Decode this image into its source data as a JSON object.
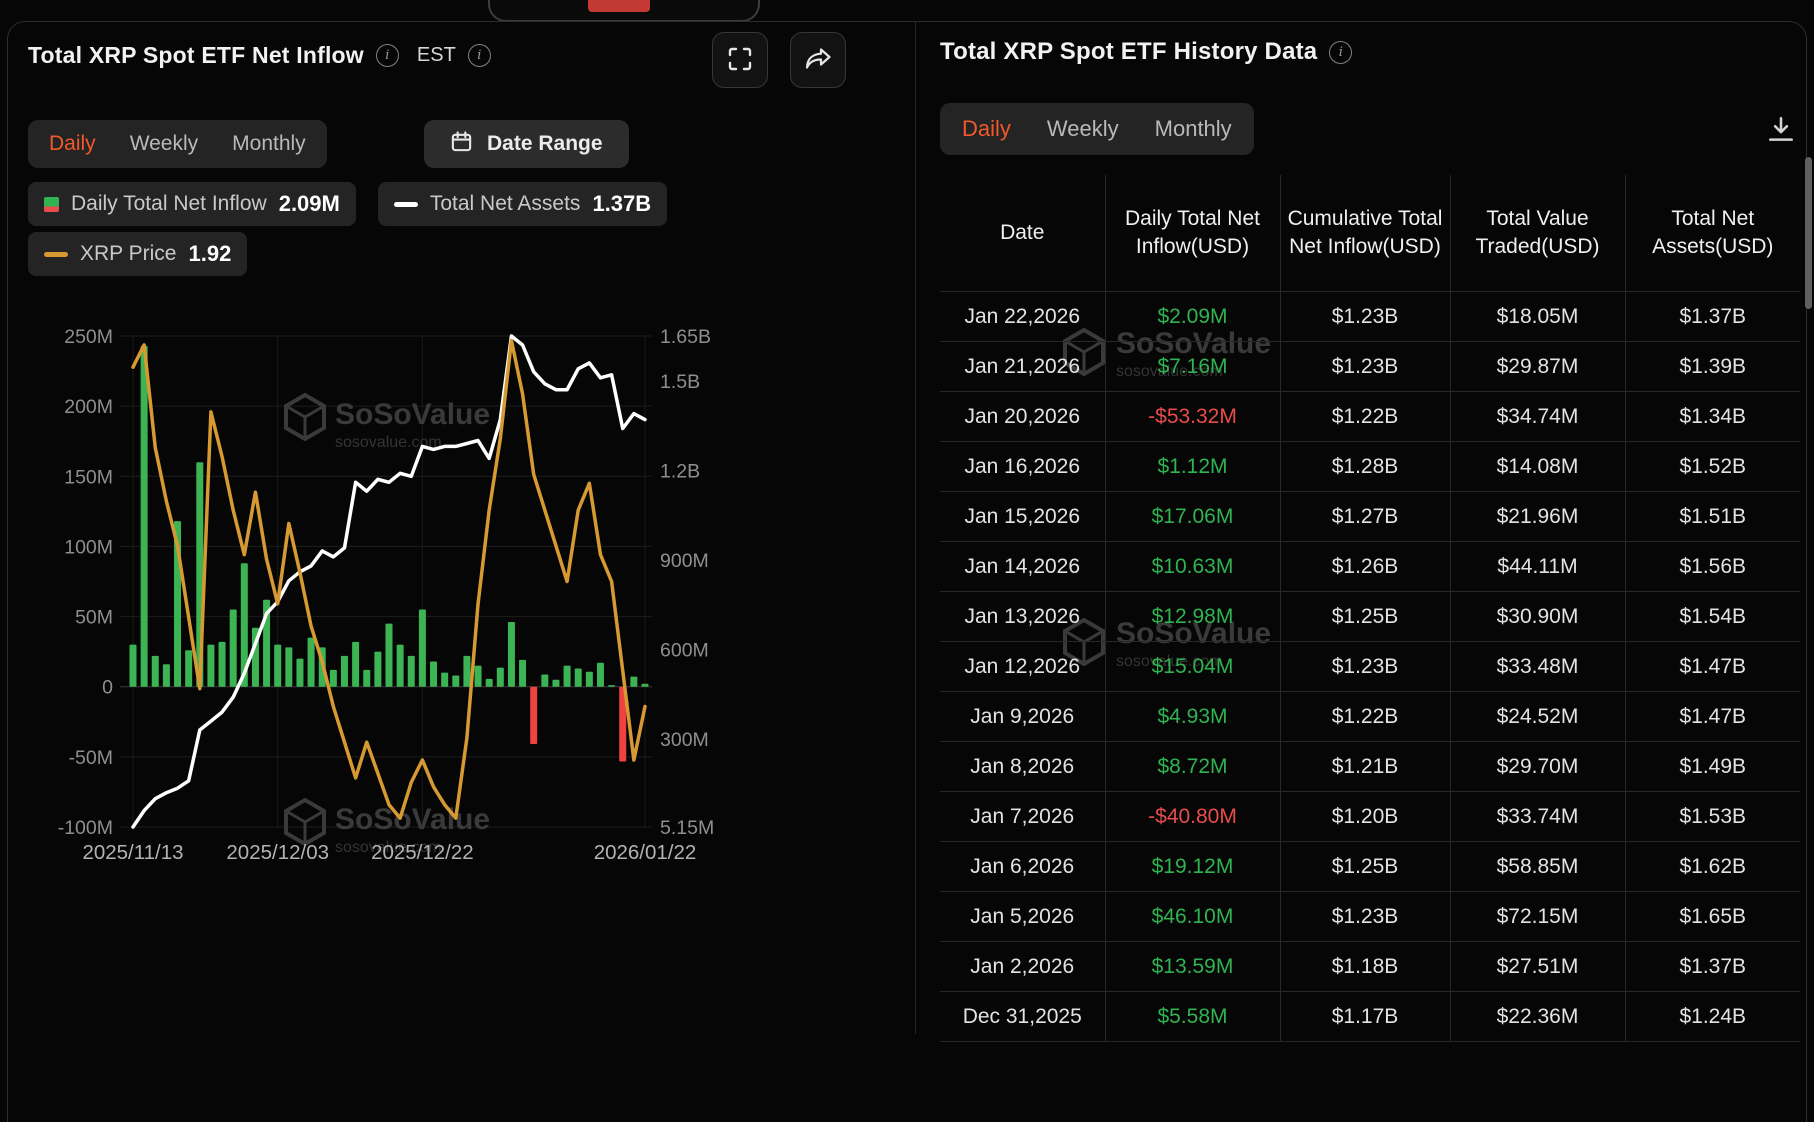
{
  "colors": {
    "accent_orange": "#f1582c",
    "green": "#30b350",
    "red": "#e94c4c",
    "price_line": "#d79a32",
    "assets_line": "#ffffff",
    "watermark": "#3a3a3a"
  },
  "watermark": {
    "name": "SoSoValue",
    "domain": "sosovalue.com"
  },
  "left_panel": {
    "title": "Total XRP Spot ETF Net Inflow",
    "est_label": "EST",
    "tabs": [
      {
        "label": "Daily",
        "active": true
      },
      {
        "label": "Weekly",
        "active": false
      },
      {
        "label": "Monthly",
        "active": false
      }
    ],
    "date_range_label": "Date Range",
    "legend": [
      {
        "label": "Daily Total Net Inflow",
        "value": "2.09M"
      },
      {
        "label": "Total Net Assets",
        "value": "1.37B"
      },
      {
        "label": "XRP Price",
        "value": "1.92"
      }
    ]
  },
  "chart_data": {
    "type": "bar",
    "note": "Mixed bar+line chart. Values for dates not present in the history table are estimated from pixel positions.",
    "x": [
      "11/13",
      "11/14",
      "11/17",
      "11/18",
      "11/19",
      "11/20",
      "11/21",
      "11/24",
      "11/25",
      "11/26",
      "11/28",
      "12/01",
      "12/02",
      "12/03",
      "12/04",
      "12/05",
      "12/08",
      "12/09",
      "12/10",
      "12/11",
      "12/12",
      "12/15",
      "12/16",
      "12/17",
      "12/18",
      "12/19",
      "12/22",
      "12/23",
      "12/24",
      "12/26",
      "12/29",
      "12/30",
      "12/31",
      "01/02",
      "01/05",
      "01/06",
      "01/07",
      "01/08",
      "01/09",
      "01/12",
      "01/13",
      "01/14",
      "01/15",
      "01/16",
      "01/20",
      "01/21",
      "01/22"
    ],
    "series": [
      {
        "name": "Daily Total Net Inflow (USD M)",
        "type": "bar",
        "axis": "left",
        "values": [
          30,
          243,
          22,
          16,
          118,
          26,
          160,
          30,
          32,
          55,
          88,
          42,
          62,
          30,
          28,
          20,
          35,
          28,
          12,
          22,
          32,
          12,
          25,
          45,
          30,
          22,
          55,
          18,
          10,
          8,
          22,
          15,
          5.58,
          13.59,
          46.1,
          19.12,
          -40.8,
          8.72,
          4.93,
          15.04,
          12.98,
          10.63,
          17.06,
          1.12,
          -53.32,
          7.16,
          2.09
        ]
      },
      {
        "name": "Total Net Assets (USD B)",
        "type": "line",
        "axis": "right",
        "color": "#ffffff",
        "values": [
          0.005,
          0.06,
          0.1,
          0.12,
          0.135,
          0.16,
          0.33,
          0.36,
          0.39,
          0.44,
          0.52,
          0.62,
          0.72,
          0.76,
          0.83,
          0.86,
          0.88,
          0.93,
          0.91,
          0.94,
          1.16,
          1.13,
          1.17,
          1.16,
          1.19,
          1.18,
          1.28,
          1.27,
          1.28,
          1.28,
          1.29,
          1.3,
          1.24,
          1.37,
          1.65,
          1.62,
          1.53,
          1.49,
          1.47,
          1.47,
          1.54,
          1.56,
          1.51,
          1.52,
          1.34,
          1.39,
          1.37
        ]
      },
      {
        "name": "XRP Price (USD)",
        "type": "line",
        "axis": "price",
        "color": "#d79a32",
        "values": [
          2.68,
          2.73,
          2.5,
          2.38,
          2.28,
          2.12,
          1.96,
          2.58,
          2.48,
          2.36,
          2.26,
          2.4,
          2.25,
          2.15,
          2.33,
          2.22,
          2.1,
          2.02,
          1.92,
          1.84,
          1.76,
          1.84,
          1.77,
          1.7,
          1.67,
          1.75,
          1.8,
          1.74,
          1.7,
          1.67,
          1.85,
          2.15,
          2.36,
          2.52,
          2.74,
          2.62,
          2.44,
          2.36,
          2.28,
          2.2,
          2.36,
          2.42,
          2.26,
          2.2,
          2.0,
          1.8,
          1.92
        ]
      }
    ],
    "left_axis": {
      "min": -100,
      "max": 250,
      "ticks": [
        {
          "label": "250M",
          "value": 250
        },
        {
          "label": "200M",
          "value": 200
        },
        {
          "label": "150M",
          "value": 150
        },
        {
          "label": "100M",
          "value": 100
        },
        {
          "label": "50M",
          "value": 50
        },
        {
          "label": "0",
          "value": 0
        },
        {
          "label": "-50M",
          "value": -50
        },
        {
          "label": "-100M",
          "value": -100
        }
      ]
    },
    "right_axis": {
      "min": 0.00515,
      "max": 1.65,
      "ticks": [
        {
          "label": "1.65B",
          "value": 1.65
        },
        {
          "label": "1.5B",
          "value": 1.5
        },
        {
          "label": "1.2B",
          "value": 1.2
        },
        {
          "label": "900M",
          "value": 0.9
        },
        {
          "label": "600M",
          "value": 0.6
        },
        {
          "label": "300M",
          "value": 0.3
        },
        {
          "label": "5.15M",
          "value": 0.00515
        }
      ]
    },
    "price_axis_hidden": {
      "min": 1.65,
      "max": 2.75
    },
    "x_tick_labels": [
      {
        "label": "2025/11/13",
        "index": 0
      },
      {
        "label": "2025/12/03",
        "index": 13
      },
      {
        "label": "2025/12/22",
        "index": 26
      },
      {
        "label": "2026/01/22",
        "index": 46
      }
    ],
    "bar_colors": {
      "positive": "#3cb454",
      "negative": "#f0433f"
    },
    "grid": true,
    "legend_position": "top"
  },
  "right_panel": {
    "title": "Total XRP Spot ETF History Data",
    "tabs": [
      {
        "label": "Daily",
        "active": true
      },
      {
        "label": "Weekly",
        "active": false
      },
      {
        "label": "Monthly",
        "active": false
      }
    ],
    "columns": [
      "Date",
      "Daily Total Net Inflow(USD)",
      "Cumulative Total Net Inflow(USD)",
      "Total Value Traded(USD)",
      "Total Net Assets(USD)"
    ],
    "rows": [
      {
        "date": "Jan 22,2026",
        "inflow": "$2.09M",
        "inflow_sign": "pos",
        "cumulative": "$1.23B",
        "traded": "$18.05M",
        "assets": "$1.37B"
      },
      {
        "date": "Jan 21,2026",
        "inflow": "$7.16M",
        "inflow_sign": "pos",
        "cumulative": "$1.23B",
        "traded": "$29.87M",
        "assets": "$1.39B"
      },
      {
        "date": "Jan 20,2026",
        "inflow": "-$53.32M",
        "inflow_sign": "neg",
        "cumulative": "$1.22B",
        "traded": "$34.74M",
        "assets": "$1.34B"
      },
      {
        "date": "Jan 16,2026",
        "inflow": "$1.12M",
        "inflow_sign": "pos",
        "cumulative": "$1.28B",
        "traded": "$14.08M",
        "assets": "$1.52B"
      },
      {
        "date": "Jan 15,2026",
        "inflow": "$17.06M",
        "inflow_sign": "pos",
        "cumulative": "$1.27B",
        "traded": "$21.96M",
        "assets": "$1.51B"
      },
      {
        "date": "Jan 14,2026",
        "inflow": "$10.63M",
        "inflow_sign": "pos",
        "cumulative": "$1.26B",
        "traded": "$44.11M",
        "assets": "$1.56B"
      },
      {
        "date": "Jan 13,2026",
        "inflow": "$12.98M",
        "inflow_sign": "pos",
        "cumulative": "$1.25B",
        "traded": "$30.90M",
        "assets": "$1.54B"
      },
      {
        "date": "Jan 12,2026",
        "inflow": "$15.04M",
        "inflow_sign": "pos",
        "cumulative": "$1.23B",
        "traded": "$33.48M",
        "assets": "$1.47B"
      },
      {
        "date": "Jan 9,2026",
        "inflow": "$4.93M",
        "inflow_sign": "pos",
        "cumulative": "$1.22B",
        "traded": "$24.52M",
        "assets": "$1.47B"
      },
      {
        "date": "Jan 8,2026",
        "inflow": "$8.72M",
        "inflow_sign": "pos",
        "cumulative": "$1.21B",
        "traded": "$29.70M",
        "assets": "$1.49B"
      },
      {
        "date": "Jan 7,2026",
        "inflow": "-$40.80M",
        "inflow_sign": "neg",
        "cumulative": "$1.20B",
        "traded": "$33.74M",
        "assets": "$1.53B"
      },
      {
        "date": "Jan 6,2026",
        "inflow": "$19.12M",
        "inflow_sign": "pos",
        "cumulative": "$1.25B",
        "traded": "$58.85M",
        "assets": "$1.62B"
      },
      {
        "date": "Jan 5,2026",
        "inflow": "$46.10M",
        "inflow_sign": "pos",
        "cumulative": "$1.23B",
        "traded": "$72.15M",
        "assets": "$1.65B"
      },
      {
        "date": "Jan 2,2026",
        "inflow": "$13.59M",
        "inflow_sign": "pos",
        "cumulative": "$1.18B",
        "traded": "$27.51M",
        "assets": "$1.37B"
      },
      {
        "date": "Dec 31,2025",
        "inflow": "$5.58M",
        "inflow_sign": "pos",
        "cumulative": "$1.17B",
        "traded": "$22.36M",
        "assets": "$1.24B"
      }
    ]
  }
}
